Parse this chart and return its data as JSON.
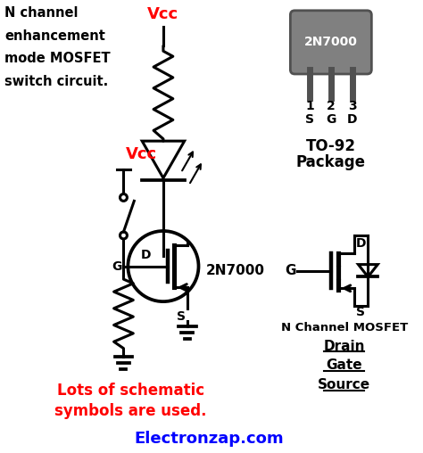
{
  "bg_color": "#ffffff",
  "title_lines": [
    "N channel",
    "enhancement",
    "mode MOSFET",
    "switch circuit."
  ],
  "title_color": "#000000",
  "vcc_color": "#ff0000",
  "mosfet_label": "2N7000",
  "bottom_text_line1": "Lots of schematic",
  "bottom_text_line2": "symbols are used.",
  "bottom_text_color": "#ff0000",
  "website_text": "Electronzap.com",
  "website_color": "#0000ff",
  "to92_label_line1": "TO-92",
  "to92_label_line2": "Package",
  "nchannel_label": "N Channel MOSFET",
  "drain_label": "Drain",
  "gate_label": "Gate",
  "source_label": "Source",
  "pkg_color": "#808080",
  "pkg_dark": "#505050",
  "pin_labels_top": [
    "1",
    "2",
    "3"
  ],
  "pin_labels_bot": [
    "S",
    "G",
    "D"
  ],
  "black": "#000000",
  "white": "#ffffff"
}
